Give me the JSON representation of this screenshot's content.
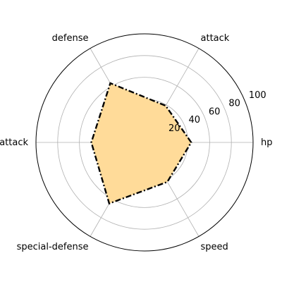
{
  "chart_data": {
    "type": "radar",
    "categories": [
      "hp",
      "attack",
      "defense",
      "special-attack",
      "special-defense",
      "speed"
    ],
    "values": [
      43,
      39,
      63,
      49,
      65,
      42
    ],
    "rlim": [
      0,
      100
    ],
    "r_ticks": [
      20,
      40,
      60,
      80,
      100
    ],
    "grid": true,
    "legend": "none",
    "colors": {
      "fill": "#ffdb99",
      "line": "#000000",
      "grid": "#b0b0b0",
      "frame": "#000000"
    }
  }
}
